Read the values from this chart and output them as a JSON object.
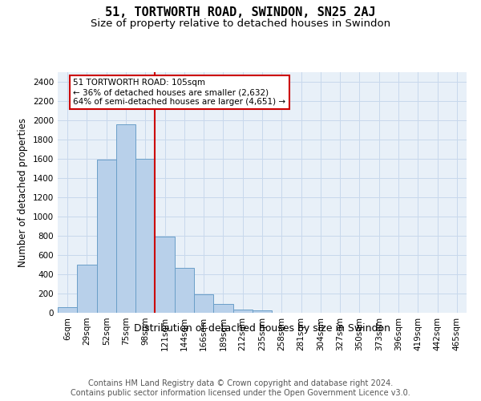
{
  "title": "51, TORTWORTH ROAD, SWINDON, SN25 2AJ",
  "subtitle": "Size of property relative to detached houses in Swindon",
  "xlabel": "Distribution of detached houses by size in Swindon",
  "ylabel": "Number of detached properties",
  "bar_labels": [
    "6sqm",
    "29sqm",
    "52sqm",
    "75sqm",
    "98sqm",
    "121sqm",
    "144sqm",
    "166sqm",
    "189sqm",
    "212sqm",
    "235sqm",
    "258sqm",
    "281sqm",
    "304sqm",
    "327sqm",
    "350sqm",
    "373sqm",
    "396sqm",
    "419sqm",
    "442sqm",
    "465sqm"
  ],
  "bar_heights": [
    60,
    500,
    1590,
    1960,
    1600,
    790,
    470,
    195,
    90,
    35,
    25,
    0,
    0,
    0,
    0,
    0,
    0,
    0,
    0,
    0,
    0
  ],
  "bar_color": "#b8d0ea",
  "bar_edge_color": "#6a9fc8",
  "grid_color": "#c8d8ec",
  "background_color": "#e8f0f8",
  "property_line_after_index": 4,
  "property_line_color": "#cc0000",
  "annotation_text": "51 TORTWORTH ROAD: 105sqm\n← 36% of detached houses are smaller (2,632)\n64% of semi-detached houses are larger (4,651) →",
  "annotation_box_edgecolor": "#cc0000",
  "ylim": [
    0,
    2500
  ],
  "yticks": [
    0,
    200,
    400,
    600,
    800,
    1000,
    1200,
    1400,
    1600,
    1800,
    2000,
    2200,
    2400
  ],
  "footer_line1": "Contains HM Land Registry data © Crown copyright and database right 2024.",
  "footer_line2": "Contains public sector information licensed under the Open Government Licence v3.0.",
  "title_fontsize": 11,
  "subtitle_fontsize": 9.5,
  "xlabel_fontsize": 9,
  "ylabel_fontsize": 8.5,
  "tick_fontsize": 7.5,
  "footer_fontsize": 7
}
